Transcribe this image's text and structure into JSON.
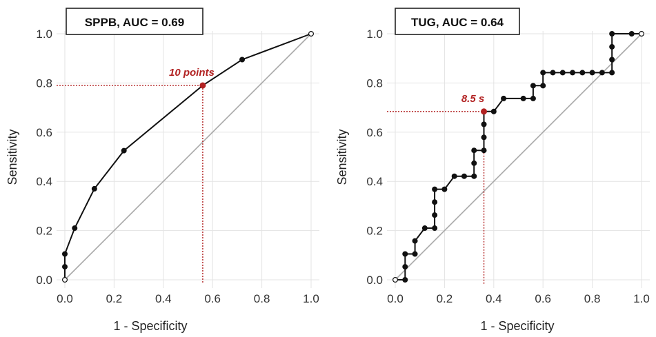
{
  "chart_data": [
    {
      "type": "line",
      "title": "SPPB, AUC = 0.69",
      "xlabel": "1 - Specificity",
      "ylabel": "Sensitivity",
      "xlim": [
        0,
        1
      ],
      "ylim": [
        0,
        1
      ],
      "xticks": [
        "0.0",
        "0.2",
        "0.4",
        "0.6",
        "0.8",
        "1.0"
      ],
      "yticks": [
        "0.0",
        "0.2",
        "0.4",
        "0.6",
        "0.8",
        "1.0"
      ],
      "grid": true,
      "diagonal_reference": true,
      "series": [
        {
          "points": [
            [
              0.0,
              0.0
            ],
            [
              0.0,
              0.053
            ],
            [
              0.0,
              0.105
            ],
            [
              0.04,
              0.21
            ],
            [
              0.12,
              0.37
            ],
            [
              0.24,
              0.525
            ],
            [
              0.56,
              0.79
            ],
            [
              0.72,
              0.895
            ],
            [
              1.0,
              1.0
            ]
          ]
        }
      ],
      "cutoff": {
        "x": 0.56,
        "y": 0.79,
        "label": "10 points",
        "color": "#b22222"
      }
    },
    {
      "type": "line",
      "title": "TUG, AUC = 0.64",
      "xlabel": "1 - Specificity",
      "ylabel": "Sensitivity",
      "xlim": [
        0,
        1
      ],
      "ylim": [
        0,
        1
      ],
      "xticks": [
        "0.0",
        "0.2",
        "0.4",
        "0.6",
        "0.8",
        "1.0"
      ],
      "yticks": [
        "0.0",
        "0.2",
        "0.4",
        "0.6",
        "0.8",
        "1.0"
      ],
      "grid": true,
      "diagonal_reference": true,
      "series": [
        {
          "points": [
            [
              0.0,
              0.0
            ],
            [
              0.04,
              0.0
            ],
            [
              0.04,
              0.053
            ],
            [
              0.04,
              0.105
            ],
            [
              0.08,
              0.105
            ],
            [
              0.08,
              0.158
            ],
            [
              0.12,
              0.21
            ],
            [
              0.16,
              0.21
            ],
            [
              0.16,
              0.263
            ],
            [
              0.16,
              0.316
            ],
            [
              0.16,
              0.368
            ],
            [
              0.2,
              0.368
            ],
            [
              0.24,
              0.421
            ],
            [
              0.28,
              0.421
            ],
            [
              0.32,
              0.421
            ],
            [
              0.32,
              0.474
            ],
            [
              0.32,
              0.526
            ],
            [
              0.36,
              0.526
            ],
            [
              0.36,
              0.579
            ],
            [
              0.36,
              0.632
            ],
            [
              0.36,
              0.684
            ],
            [
              0.4,
              0.684
            ],
            [
              0.44,
              0.737
            ],
            [
              0.52,
              0.737
            ],
            [
              0.56,
              0.737
            ],
            [
              0.56,
              0.789
            ],
            [
              0.6,
              0.789
            ],
            [
              0.6,
              0.842
            ],
            [
              0.64,
              0.842
            ],
            [
              0.68,
              0.842
            ],
            [
              0.72,
              0.842
            ],
            [
              0.76,
              0.842
            ],
            [
              0.8,
              0.842
            ],
            [
              0.84,
              0.842
            ],
            [
              0.88,
              0.842
            ],
            [
              0.88,
              0.895
            ],
            [
              0.88,
              0.947
            ],
            [
              0.88,
              1.0
            ],
            [
              0.96,
              1.0
            ],
            [
              1.0,
              1.0
            ]
          ]
        }
      ],
      "cutoff": {
        "x": 0.36,
        "y": 0.684,
        "label": "8.5 s",
        "color": "#b22222"
      }
    }
  ]
}
